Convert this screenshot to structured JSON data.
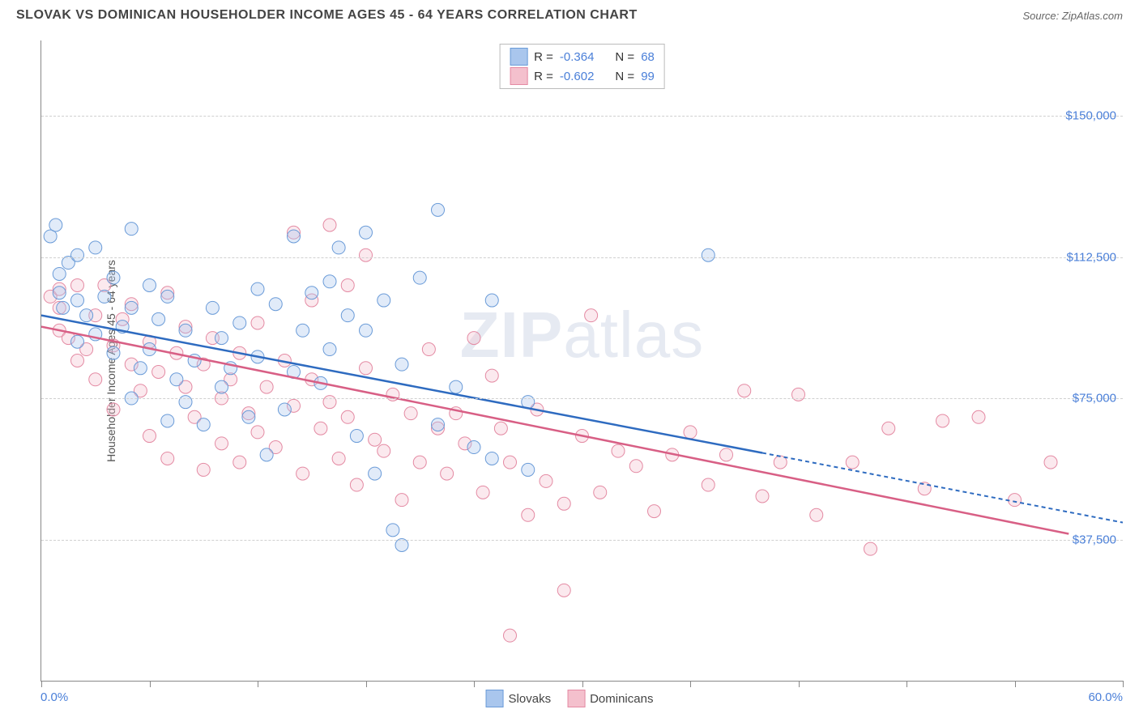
{
  "title": "SLOVAK VS DOMINICAN HOUSEHOLDER INCOME AGES 45 - 64 YEARS CORRELATION CHART",
  "source_label": "Source: ",
  "source_value": "ZipAtlas.com",
  "y_axis_title": "Householder Income Ages 45 - 64 years",
  "x_min_label": "0.0%",
  "x_max_label": "60.0%",
  "watermark_a": "ZIP",
  "watermark_b": "atlas",
  "chart": {
    "type": "scatter",
    "xlim": [
      0,
      60
    ],
    "ylim": [
      0,
      170000
    ],
    "x_ticks": [
      0,
      6,
      12,
      18,
      24,
      30,
      36,
      42,
      48,
      54,
      60
    ],
    "y_gridlines": [
      37500,
      75000,
      112500,
      150000
    ],
    "y_tick_labels": [
      "$150,000",
      "$112,500",
      "$75,000",
      "$37,500"
    ],
    "y_tick_values": [
      150000,
      112500,
      75000,
      37500
    ],
    "background_color": "#ffffff",
    "grid_color": "#d0d0d0",
    "marker_radius": 8,
    "series": {
      "slovaks": {
        "label": "Slovaks",
        "fill": "#a9c6ed",
        "stroke": "#6a9bd8",
        "line_color": "#2e6bc0",
        "r": -0.364,
        "n": 68,
        "regression": {
          "x1": 0,
          "y1": 97000,
          "x2": 40,
          "y2": 60500,
          "ext_x": 60,
          "ext_y": 42000
        },
        "points": [
          [
            0.5,
            118000
          ],
          [
            0.8,
            121000
          ],
          [
            1,
            103000
          ],
          [
            1,
            108000
          ],
          [
            1.2,
            99000
          ],
          [
            1.5,
            111000
          ],
          [
            2,
            90000
          ],
          [
            2,
            113000
          ],
          [
            2,
            101000
          ],
          [
            2.5,
            97000
          ],
          [
            3,
            115000
          ],
          [
            3,
            92000
          ],
          [
            3.5,
            102000
          ],
          [
            4,
            107000
          ],
          [
            4,
            87000
          ],
          [
            4.5,
            94000
          ],
          [
            5,
            99000
          ],
          [
            5,
            75000
          ],
          [
            5,
            120000
          ],
          [
            5.5,
            83000
          ],
          [
            6,
            105000
          ],
          [
            6,
            88000
          ],
          [
            6.5,
            96000
          ],
          [
            7,
            69000
          ],
          [
            7,
            102000
          ],
          [
            7.5,
            80000
          ],
          [
            8,
            93000
          ],
          [
            8,
            74000
          ],
          [
            8.5,
            85000
          ],
          [
            9,
            68000
          ],
          [
            9.5,
            99000
          ],
          [
            10,
            91000
          ],
          [
            10,
            78000
          ],
          [
            10.5,
            83000
          ],
          [
            11,
            95000
          ],
          [
            11.5,
            70000
          ],
          [
            12,
            104000
          ],
          [
            12,
            86000
          ],
          [
            12.5,
            60000
          ],
          [
            13,
            100000
          ],
          [
            13.5,
            72000
          ],
          [
            14,
            82000
          ],
          [
            14,
            118000
          ],
          [
            14.5,
            93000
          ],
          [
            15,
            103000
          ],
          [
            15.5,
            79000
          ],
          [
            16,
            106000
          ],
          [
            16,
            88000
          ],
          [
            16.5,
            115000
          ],
          [
            17,
            97000
          ],
          [
            17.5,
            65000
          ],
          [
            18,
            119000
          ],
          [
            18,
            93000
          ],
          [
            18.5,
            55000
          ],
          [
            19,
            101000
          ],
          [
            19.5,
            40000
          ],
          [
            20,
            84000
          ],
          [
            20,
            36000
          ],
          [
            21,
            107000
          ],
          [
            22,
            125000
          ],
          [
            22,
            68000
          ],
          [
            23,
            78000
          ],
          [
            24,
            62000
          ],
          [
            25,
            59000
          ],
          [
            25,
            101000
          ],
          [
            27,
            74000
          ],
          [
            27,
            56000
          ],
          [
            37,
            113000
          ]
        ]
      },
      "dominicans": {
        "label": "Dominicans",
        "fill": "#f4c0cd",
        "stroke": "#e48aa3",
        "line_color": "#d85f85",
        "r": -0.602,
        "n": 99,
        "regression": {
          "x1": 0,
          "y1": 94000,
          "x2": 57,
          "y2": 39000,
          "ext_x": 57,
          "ext_y": 39000
        },
        "points": [
          [
            0.5,
            102000
          ],
          [
            1,
            99000
          ],
          [
            1,
            93000
          ],
          [
            1,
            104000
          ],
          [
            1.5,
            91000
          ],
          [
            2,
            105000
          ],
          [
            2,
            85000
          ],
          [
            2.5,
            88000
          ],
          [
            3,
            97000
          ],
          [
            3,
            80000
          ],
          [
            3.5,
            105000
          ],
          [
            4,
            89000
          ],
          [
            4,
            72000
          ],
          [
            4.5,
            96000
          ],
          [
            5,
            84000
          ],
          [
            5,
            100000
          ],
          [
            5.5,
            77000
          ],
          [
            6,
            90000
          ],
          [
            6,
            65000
          ],
          [
            6.5,
            82000
          ],
          [
            7,
            103000
          ],
          [
            7,
            59000
          ],
          [
            7.5,
            87000
          ],
          [
            8,
            78000
          ],
          [
            8,
            94000
          ],
          [
            8.5,
            70000
          ],
          [
            9,
            84000
          ],
          [
            9,
            56000
          ],
          [
            9.5,
            91000
          ],
          [
            10,
            75000
          ],
          [
            10,
            63000
          ],
          [
            10.5,
            80000
          ],
          [
            11,
            87000
          ],
          [
            11,
            58000
          ],
          [
            11.5,
            71000
          ],
          [
            12,
            95000
          ],
          [
            12,
            66000
          ],
          [
            12.5,
            78000
          ],
          [
            13,
            62000
          ],
          [
            13.5,
            85000
          ],
          [
            14,
            119000
          ],
          [
            14,
            73000
          ],
          [
            14.5,
            55000
          ],
          [
            15,
            80000
          ],
          [
            15,
            101000
          ],
          [
            15.5,
            67000
          ],
          [
            16,
            74000
          ],
          [
            16,
            121000
          ],
          [
            16.5,
            59000
          ],
          [
            17,
            105000
          ],
          [
            17,
            70000
          ],
          [
            17.5,
            52000
          ],
          [
            18,
            83000
          ],
          [
            18,
            113000
          ],
          [
            18.5,
            64000
          ],
          [
            19,
            61000
          ],
          [
            19.5,
            76000
          ],
          [
            20,
            48000
          ],
          [
            20.5,
            71000
          ],
          [
            21,
            58000
          ],
          [
            21.5,
            88000
          ],
          [
            22,
            67000
          ],
          [
            22.5,
            55000
          ],
          [
            23,
            71000
          ],
          [
            23.5,
            63000
          ],
          [
            24,
            91000
          ],
          [
            24.5,
            50000
          ],
          [
            25,
            81000
          ],
          [
            25.5,
            67000
          ],
          [
            26,
            58000
          ],
          [
            26,
            12000
          ],
          [
            27,
            44000
          ],
          [
            27.5,
            72000
          ],
          [
            28,
            53000
          ],
          [
            29,
            47000
          ],
          [
            29,
            24000
          ],
          [
            30,
            65000
          ],
          [
            30.5,
            97000
          ],
          [
            31,
            50000
          ],
          [
            32,
            61000
          ],
          [
            33,
            57000
          ],
          [
            34,
            45000
          ],
          [
            35,
            60000
          ],
          [
            36,
            66000
          ],
          [
            37,
            52000
          ],
          [
            38,
            60000
          ],
          [
            39,
            77000
          ],
          [
            40,
            49000
          ],
          [
            41,
            58000
          ],
          [
            42,
            76000
          ],
          [
            43,
            44000
          ],
          [
            45,
            58000
          ],
          [
            46,
            35000
          ],
          [
            47,
            67000
          ],
          [
            49,
            51000
          ],
          [
            50,
            69000
          ],
          [
            52,
            70000
          ],
          [
            54,
            48000
          ],
          [
            56,
            58000
          ]
        ]
      }
    }
  },
  "legend_r_label": "R =",
  "legend_n_label": "N ="
}
